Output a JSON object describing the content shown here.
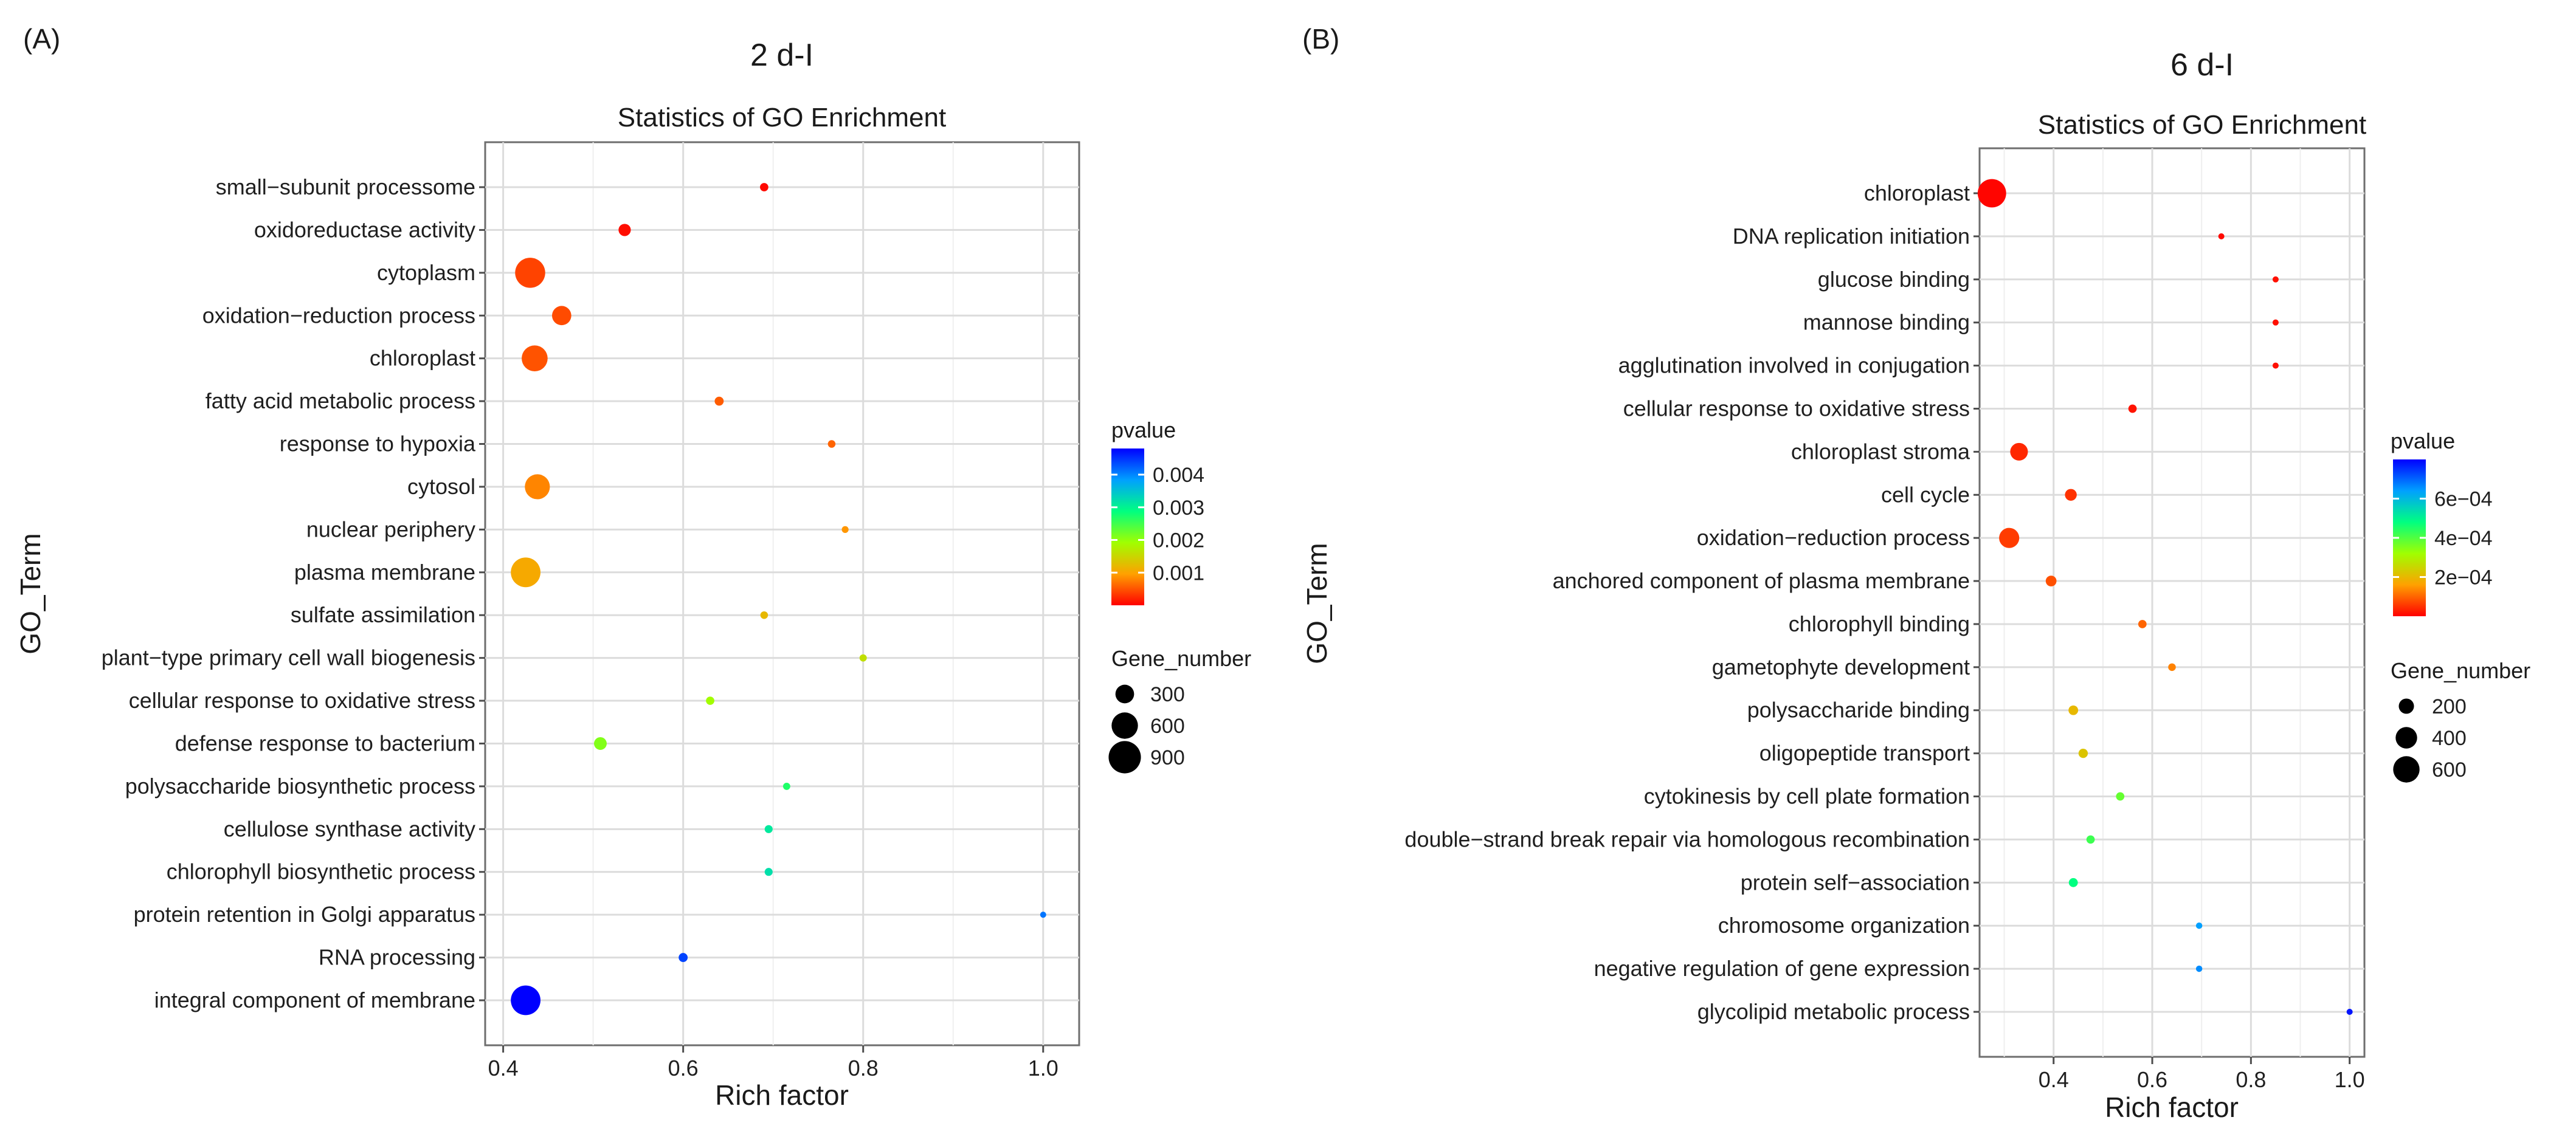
{
  "panels": [
    {
      "panel_label": "(A)",
      "heading": "2 d-I",
      "chart_data": {
        "type": "scatter",
        "title": "Statistics of GO Enrichment",
        "xlabel": "Rich factor",
        "ylabel": "GO_Term",
        "xlim": [
          0.38,
          1.04
        ],
        "xticks": [
          0.4,
          0.6,
          0.8,
          1.0
        ],
        "xtick_labels": [
          "0.4",
          "0.6",
          "0.8",
          "1.0"
        ],
        "color_legend": {
          "title": "pvalue",
          "min": 0,
          "max": 0.0048,
          "ticks": [
            0.001,
            0.002,
            0.003,
            0.004
          ],
          "tick_labels": [
            "0.001",
            "0.002",
            "0.003",
            "0.004"
          ]
        },
        "size_legend": {
          "title": "Gene_number",
          "size_domain": [
            0,
            1000
          ],
          "entries": [
            {
              "label": "300",
              "value": 300
            },
            {
              "label": "600",
              "value": 600
            },
            {
              "label": "900",
              "value": 900
            }
          ]
        },
        "terms": [
          {
            "term": "small−subunit processome",
            "rich_factor": 0.69,
            "pvalue": 5e-05,
            "gene_number": 60
          },
          {
            "term": "oxidoreductase activity",
            "rich_factor": 0.535,
            "pvalue": 8e-05,
            "gene_number": 130
          },
          {
            "term": "cytoplasm",
            "rich_factor": 0.43,
            "pvalue": 0.0004,
            "gene_number": 780
          },
          {
            "term": "oxidation−reduction process",
            "rich_factor": 0.465,
            "pvalue": 0.00045,
            "gene_number": 320
          },
          {
            "term": "chloroplast",
            "rich_factor": 0.435,
            "pvalue": 0.0005,
            "gene_number": 580
          },
          {
            "term": "fatty acid metabolic process",
            "rich_factor": 0.64,
            "pvalue": 0.00055,
            "gene_number": 70
          },
          {
            "term": "response to hypoxia",
            "rich_factor": 0.765,
            "pvalue": 0.0006,
            "gene_number": 50
          },
          {
            "term": "cytosol",
            "rich_factor": 0.438,
            "pvalue": 0.0008,
            "gene_number": 540
          },
          {
            "term": "nuclear periphery",
            "rich_factor": 0.78,
            "pvalue": 0.0009,
            "gene_number": 40
          },
          {
            "term": "plasma membrane",
            "rich_factor": 0.425,
            "pvalue": 0.00105,
            "gene_number": 760
          },
          {
            "term": "sulfate assimilation",
            "rich_factor": 0.69,
            "pvalue": 0.0012,
            "gene_number": 50
          },
          {
            "term": "plant−type primary cell wall biogenesis",
            "rich_factor": 0.8,
            "pvalue": 0.0016,
            "gene_number": 45
          },
          {
            "term": "cellular response to oxidative stress",
            "rich_factor": 0.63,
            "pvalue": 0.0019,
            "gene_number": 60
          },
          {
            "term": "defense response to bacterium",
            "rich_factor": 0.508,
            "pvalue": 0.0021,
            "gene_number": 140
          },
          {
            "term": "polysaccharide biosynthetic process",
            "rich_factor": 0.715,
            "pvalue": 0.0027,
            "gene_number": 45
          },
          {
            "term": "cellulose synthase activity",
            "rich_factor": 0.695,
            "pvalue": 0.0031,
            "gene_number": 55
          },
          {
            "term": "chlorophyll biosynthetic process",
            "rich_factor": 0.695,
            "pvalue": 0.0032,
            "gene_number": 55
          },
          {
            "term": "protein retention in Golgi apparatus",
            "rich_factor": 1.0,
            "pvalue": 0.0041,
            "gene_number": 25
          },
          {
            "term": "RNA processing",
            "rich_factor": 0.6,
            "pvalue": 0.0044,
            "gene_number": 70
          },
          {
            "term": "integral component of membrane",
            "rich_factor": 0.425,
            "pvalue": 0.0048,
            "gene_number": 760
          }
        ]
      }
    },
    {
      "panel_label": "(B)",
      "heading": "6 d-I",
      "chart_data": {
        "type": "scatter",
        "title": "Statistics of GO Enrichment",
        "xlabel": "Rich factor",
        "ylabel": "GO_Term",
        "xlim": [
          0.25,
          1.03
        ],
        "xticks": [
          0.4,
          0.6,
          0.8,
          1.0
        ],
        "xtick_labels": [
          "0.4",
          "0.6",
          "0.8",
          "1.0"
        ],
        "color_legend": {
          "title": "pvalue",
          "min": 0,
          "max": 0.0008,
          "ticks": [
            0.0002,
            0.0004,
            0.0006
          ],
          "tick_labels": [
            "2e−04",
            "4e−04",
            "6e−04"
          ]
        },
        "size_legend": {
          "title": "Gene_number",
          "size_domain": [
            0,
            1000
          ],
          "entries": [
            {
              "label": "200",
              "value": 200
            },
            {
              "label": "400",
              "value": 400
            },
            {
              "label": "600",
              "value": 600
            }
          ]
        },
        "terms": [
          {
            "term": "chloroplast",
            "rich_factor": 0.275,
            "pvalue": 5e-06,
            "gene_number": 700
          },
          {
            "term": "DNA replication initiation",
            "rich_factor": 0.74,
            "pvalue": 1e-05,
            "gene_number": 30
          },
          {
            "term": "glucose binding",
            "rich_factor": 0.85,
            "pvalue": 1.5e-05,
            "gene_number": 25
          },
          {
            "term": "mannose binding",
            "rich_factor": 0.85,
            "pvalue": 1.5e-05,
            "gene_number": 25
          },
          {
            "term": "agglutination involved in conjugation",
            "rich_factor": 0.85,
            "pvalue": 1.5e-05,
            "gene_number": 25
          },
          {
            "term": "cellular response to oxidative stress",
            "rich_factor": 0.56,
            "pvalue": 2e-05,
            "gene_number": 60
          },
          {
            "term": "chloroplast stroma",
            "rich_factor": 0.33,
            "pvalue": 4e-05,
            "gene_number": 270
          },
          {
            "term": "cell cycle",
            "rich_factor": 0.435,
            "pvalue": 5e-05,
            "gene_number": 120
          },
          {
            "term": "oxidation−reduction process",
            "rich_factor": 0.31,
            "pvalue": 6e-05,
            "gene_number": 350
          },
          {
            "term": "anchored component of plasma membrane",
            "rich_factor": 0.395,
            "pvalue": 8e-05,
            "gene_number": 100
          },
          {
            "term": "chlorophyll binding",
            "rich_factor": 0.58,
            "pvalue": 0.0001,
            "gene_number": 60
          },
          {
            "term": "gametophyte development",
            "rich_factor": 0.64,
            "pvalue": 0.00013,
            "gene_number": 50
          },
          {
            "term": "polysaccharide binding",
            "rich_factor": 0.44,
            "pvalue": 0.0002,
            "gene_number": 80
          },
          {
            "term": "oligopeptide transport",
            "rich_factor": 0.46,
            "pvalue": 0.00022,
            "gene_number": 75
          },
          {
            "term": "cytokinesis by cell plate formation",
            "rich_factor": 0.535,
            "pvalue": 0.00038,
            "gene_number": 60
          },
          {
            "term": "double−strand break repair via homologous recombination",
            "rich_factor": 0.475,
            "pvalue": 0.00042,
            "gene_number": 60
          },
          {
            "term": "protein self−association",
            "rich_factor": 0.44,
            "pvalue": 0.00048,
            "gene_number": 70
          },
          {
            "term": "chromosome organization",
            "rich_factor": 0.695,
            "pvalue": 0.00064,
            "gene_number": 35
          },
          {
            "term": "negative regulation of gene expression",
            "rich_factor": 0.695,
            "pvalue": 0.00066,
            "gene_number": 35
          },
          {
            "term": "glycolipid metabolic process",
            "rich_factor": 1.0,
            "pvalue": 0.00078,
            "gene_number": 20
          }
        ]
      }
    }
  ]
}
